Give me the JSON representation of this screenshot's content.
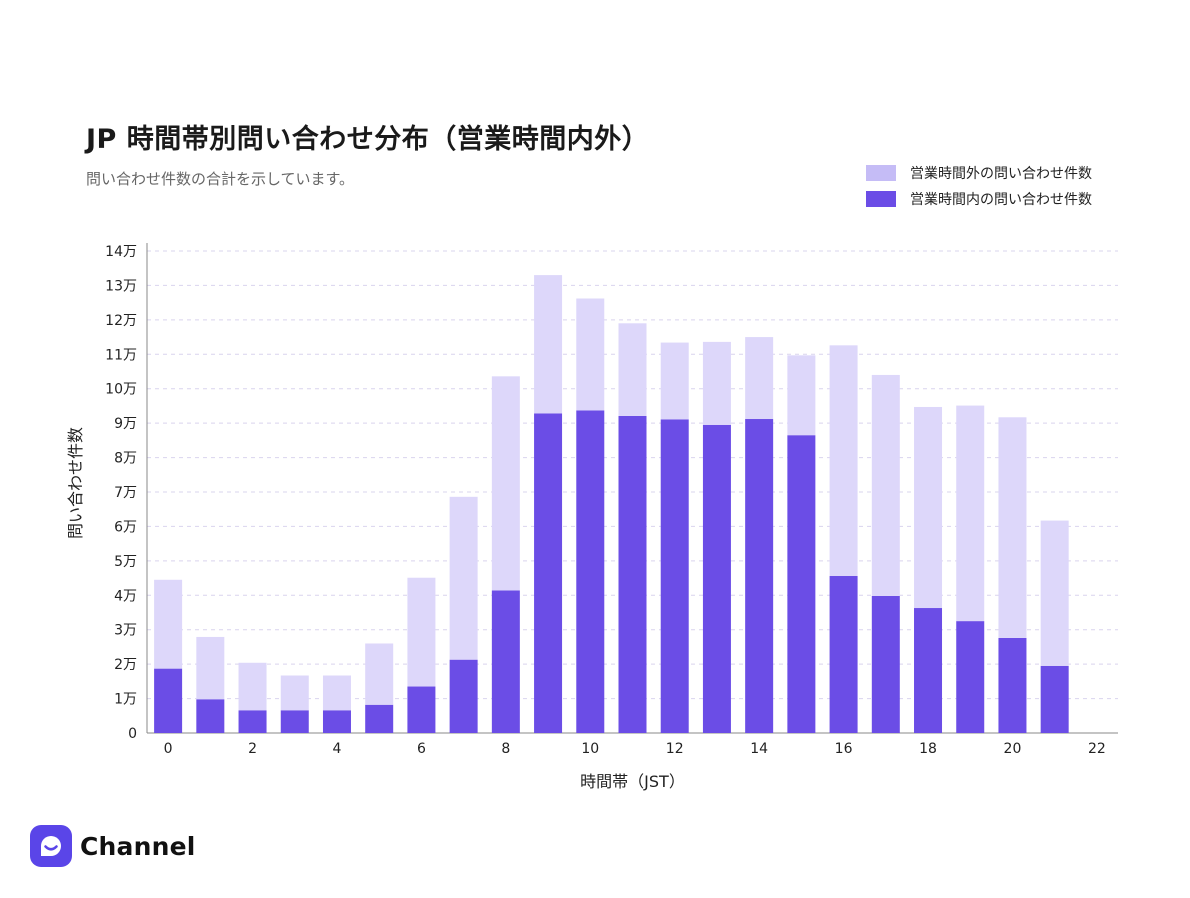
{
  "header": {
    "title": "JP 時間帯別問い合わせ分布（営業時間内外）",
    "subtitle": "問い合わせ件数の合計を示しています。"
  },
  "brand": {
    "name": "Channel",
    "color": "#5a45e8"
  },
  "chart_data": {
    "type": "bar",
    "stacked": true,
    "xlabel": "時間帯（JST）",
    "ylabel": "問い合わせ件数",
    "ylim": [
      0,
      140000
    ],
    "y_ticks": [
      0,
      10000,
      20000,
      30000,
      40000,
      50000,
      60000,
      70000,
      80000,
      90000,
      100000,
      110000,
      120000,
      130000,
      140000
    ],
    "y_tick_labels": [
      "0",
      "1万",
      "2万",
      "3万",
      "4万",
      "5万",
      "6万",
      "7万",
      "8万",
      "9万",
      "10万",
      "11万",
      "12万",
      "13万",
      "14万"
    ],
    "categories": [
      "0",
      "1",
      "2",
      "3",
      "4",
      "5",
      "6",
      "7",
      "8",
      "9",
      "10",
      "11",
      "12",
      "13",
      "14",
      "15",
      "16",
      "17",
      "18",
      "19",
      "20",
      "21",
      "22"
    ],
    "x_tick_labels": [
      "0",
      "",
      "2",
      "",
      "4",
      "",
      "6",
      "",
      "8",
      "",
      "10",
      "",
      "12",
      "",
      "14",
      "",
      "16",
      "",
      "18",
      "",
      "20",
      "",
      "22"
    ],
    "grid": true,
    "legend_position": "top-right",
    "series": [
      {
        "name": "営業時間内の問い合わせ件数",
        "color": "#6b4de6",
        "values": [
          18700,
          9800,
          6600,
          6600,
          6600,
          8200,
          13500,
          21300,
          41400,
          92800,
          93700,
          92100,
          91100,
          89500,
          91200,
          86500,
          45600,
          39800,
          36300,
          32500,
          27600,
          19500,
          0
        ]
      },
      {
        "name": "営業時間外の問い合わせ件数",
        "color": "#ddd7fa",
        "values": [
          25800,
          18100,
          13800,
          10100,
          10100,
          17800,
          31600,
          47300,
          62200,
          40200,
          32500,
          26900,
          22300,
          24100,
          23800,
          23200,
          67000,
          64200,
          58400,
          62600,
          64100,
          42200,
          0
        ]
      }
    ],
    "bar_totals": [
      44500,
      27900,
      20400,
      16700,
      16700,
      26000,
      45100,
      68600,
      103600,
      133000,
      126200,
      119000,
      113400,
      113600,
      115000,
      109700,
      112600,
      104000,
      94700,
      95100,
      91700,
      61700,
      0
    ]
  }
}
